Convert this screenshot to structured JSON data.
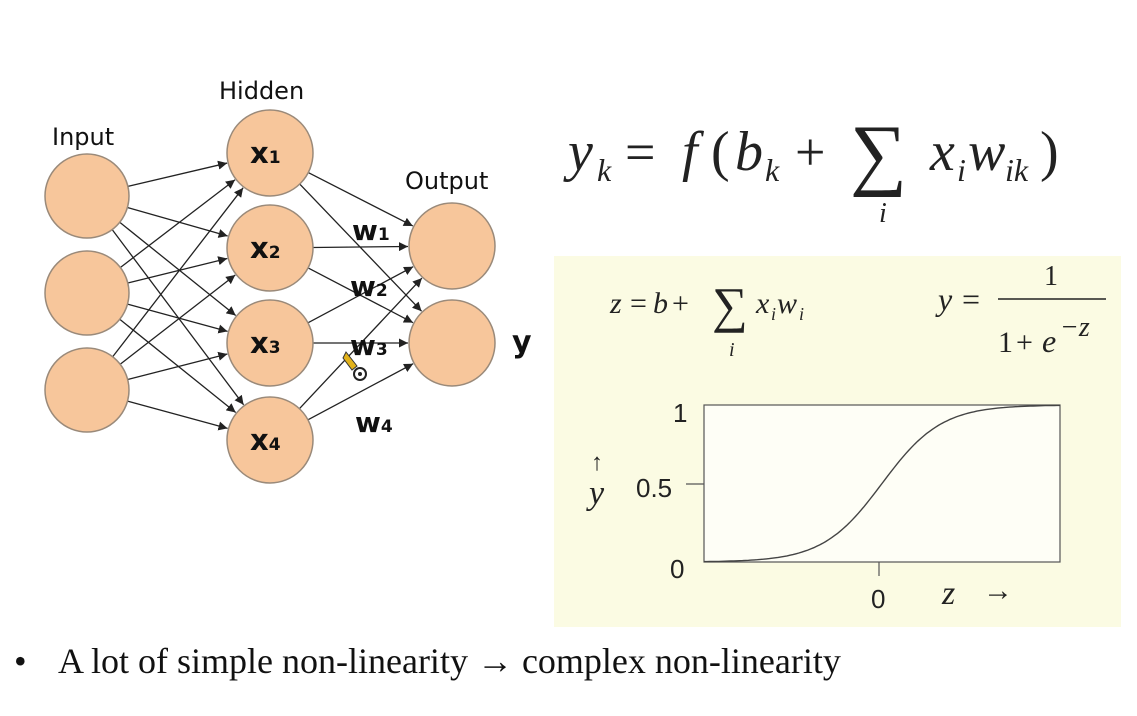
{
  "network": {
    "labels": {
      "input": "Input",
      "hidden": "Hidden",
      "output": "Output"
    },
    "hidden_nodes": [
      {
        "base": "x",
        "sub": "1"
      },
      {
        "base": "x",
        "sub": "2"
      },
      {
        "base": "x",
        "sub": "3"
      },
      {
        "base": "x",
        "sub": "4"
      }
    ],
    "weights": [
      {
        "base": "w",
        "sub": "1"
      },
      {
        "base": "w",
        "sub": "2"
      },
      {
        "base": "w",
        "sub": "3"
      },
      {
        "base": "w",
        "sub": "4"
      }
    ],
    "output_label": "y",
    "colors": {
      "node_fill": "#f7c69b",
      "node_stroke": "#9a8a7a",
      "edge": "#222222"
    }
  },
  "formula_main": {
    "y": "y",
    "y_sub": "k",
    "eq": "=",
    "f": "f",
    "lparen": "(",
    "b": "b",
    "b_sub": "k",
    "plus": "+",
    "sigma": "∑",
    "sigma_sub": "i",
    "x": "x",
    "x_sub": "i",
    "w": "w",
    "w_sub": "ik",
    "rparen": ")"
  },
  "panel": {
    "bg_color": "#fbfbe3",
    "formula_z": {
      "z": "z",
      "eq": "=",
      "b": "b",
      "plus": "+",
      "sigma": "∑",
      "sigma_sub": "i",
      "x": "x",
      "x_sub": "i",
      "w": "w",
      "w_sub": "i"
    },
    "formula_y": {
      "y": "y",
      "eq": "=",
      "numerator": "1",
      "den_one": "1",
      "den_plus": "+",
      "den_e": "e",
      "den_exp": "−z"
    },
    "sigmoid_chart": {
      "y_ticks": [
        "1",
        "0.5",
        "0"
      ],
      "x_tick": "0",
      "y_label": "y",
      "y_arrow": "↑",
      "x_label": "z",
      "x_arrow": "→"
    }
  },
  "chart_data": {
    "type": "line",
    "function": "sigmoid",
    "x_range": [
      -6,
      6
    ],
    "ylim": [
      0,
      1
    ],
    "y_ticks": [
      0,
      0.5,
      1
    ],
    "x_ticks": [
      0
    ],
    "xlabel": "z",
    "ylabel": "y",
    "grid": false
  },
  "bullet": {
    "symbol": "•",
    "text_before": "A lot of simple non-linearity ",
    "arrow": "→",
    "text_after": " complex non-linearity"
  }
}
